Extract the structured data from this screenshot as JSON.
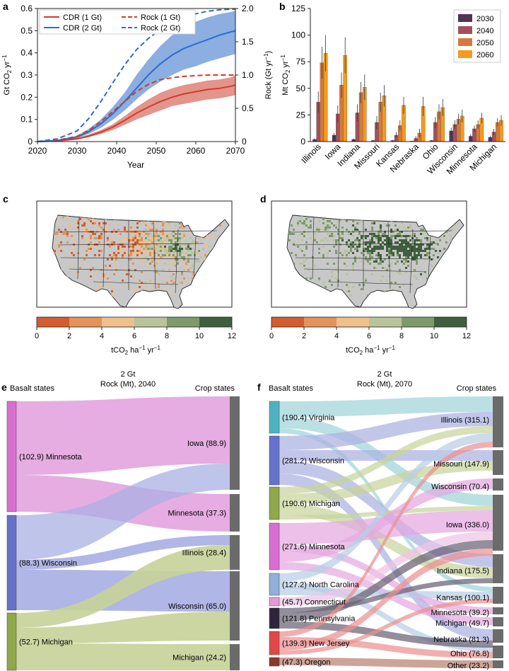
{
  "panel_labels": [
    "a",
    "b",
    "c",
    "d",
    "e",
    "f"
  ],
  "chart_data": [
    {
      "panel": "a",
      "type": "line",
      "xlabel": "Year",
      "ylabel_left": "Gt CO2 yr-1",
      "ylabel_right": "Rock (Gt yr-1)",
      "xlim": [
        2020,
        2070
      ],
      "ylim_left": [
        0,
        0.6
      ],
      "ylim_right": [
        0,
        2.0
      ],
      "x_ticks": [
        "2020",
        "2030",
        "2040",
        "2050",
        "2060",
        "2070"
      ],
      "y_ticks_left": [
        "0",
        "0.1",
        "0.2",
        "0.3",
        "0.4",
        "0.5",
        "0.6"
      ],
      "y_ticks_right": [
        "0",
        "0.5",
        "1.0",
        "1.5",
        "2.0"
      ],
      "x": [
        2020,
        2025,
        2030,
        2033,
        2036,
        2039,
        2042,
        2045,
        2048,
        2051,
        2054,
        2057,
        2060,
        2063,
        2066,
        2069,
        2070
      ],
      "series": [
        {
          "name": "CDR (1 Gt)",
          "axis": "left",
          "color": "#cc3d2b",
          "dash": false,
          "values": [
            0,
            0.003,
            0.012,
            0.025,
            0.042,
            0.065,
            0.095,
            0.128,
            0.155,
            0.18,
            0.2,
            0.215,
            0.225,
            0.235,
            0.24,
            0.25,
            0.255
          ],
          "lower": [
            0,
            0.002,
            0.009,
            0.02,
            0.034,
            0.052,
            0.075,
            0.1,
            0.12,
            0.14,
            0.16,
            0.17,
            0.18,
            0.19,
            0.195,
            0.205,
            0.21
          ],
          "upper": [
            0,
            0.005,
            0.016,
            0.032,
            0.052,
            0.078,
            0.115,
            0.155,
            0.19,
            0.22,
            0.24,
            0.255,
            0.265,
            0.275,
            0.28,
            0.29,
            0.3
          ]
        },
        {
          "name": "CDR (2 Gt)",
          "axis": "left",
          "color": "#2e6bc9",
          "dash": false,
          "values": [
            0,
            0.005,
            0.02,
            0.045,
            0.08,
            0.125,
            0.18,
            0.24,
            0.3,
            0.35,
            0.39,
            0.42,
            0.44,
            0.46,
            0.48,
            0.495,
            0.5
          ],
          "lower": [
            0,
            0.004,
            0.015,
            0.035,
            0.062,
            0.098,
            0.14,
            0.19,
            0.235,
            0.27,
            0.3,
            0.325,
            0.34,
            0.36,
            0.375,
            0.39,
            0.395
          ],
          "upper": [
            0,
            0.007,
            0.026,
            0.058,
            0.1,
            0.155,
            0.22,
            0.3,
            0.37,
            0.43,
            0.48,
            0.52,
            0.54,
            0.56,
            0.575,
            0.585,
            0.59
          ]
        },
        {
          "name": "Rock (1 Gt)",
          "axis": "right",
          "color": "#cc3d2b",
          "dash": true,
          "values": [
            0,
            0.02,
            0.08,
            0.17,
            0.3,
            0.45,
            0.6,
            0.75,
            0.86,
            0.93,
            0.96,
            0.98,
            0.99,
            1.0,
            1.0,
            1.0,
            1.0
          ]
        },
        {
          "name": "Rock (2 Gt)",
          "axis": "right",
          "color": "#2e6bc9",
          "dash": true,
          "values": [
            0,
            0.04,
            0.16,
            0.35,
            0.6,
            0.88,
            1.15,
            1.38,
            1.55,
            1.68,
            1.78,
            1.86,
            1.92,
            1.96,
            1.98,
            1.99,
            1.99
          ]
        }
      ]
    },
    {
      "panel": "b",
      "type": "bar",
      "ylabel": "Mt CO2 yr-1",
      "ylim": [
        0,
        125
      ],
      "y_ticks": [
        "0",
        "25",
        "50",
        "75",
        "100",
        "125"
      ],
      "categories": [
        "Illinois",
        "Iowa",
        "Indiana",
        "Missouri",
        "Kansas",
        "Nebraska",
        "Ohio",
        "Wisconsin",
        "Minnesota",
        "Michigan"
      ],
      "series": [
        {
          "name": "2030",
          "color": "#4e3555",
          "values": [
            2,
            6,
            2,
            1,
            1,
            0.5,
            1,
            10,
            5,
            4
          ],
          "err": [
            1,
            2,
            1,
            0.5,
            0.5,
            0.3,
            0.5,
            3,
            2,
            1.5
          ]
        },
        {
          "name": "2040",
          "color": "#a0525a",
          "values": [
            37,
            26,
            27,
            18,
            6,
            3,
            18,
            16,
            12,
            9
          ],
          "err": [
            10,
            8,
            8,
            6,
            3,
            2,
            5,
            4,
            3,
            3
          ]
        },
        {
          "name": "2050",
          "color": "#d57a3c",
          "values": [
            74,
            53,
            46,
            37,
            15,
            8,
            28,
            21,
            16,
            18
          ],
          "err": [
            15,
            12,
            10,
            9,
            5,
            4,
            7,
            5,
            4,
            4
          ]
        },
        {
          "name": "2060",
          "color": "#f59a1e",
          "values": [
            83,
            81,
            51,
            43,
            34,
            33,
            32,
            24,
            22,
            20
          ],
          "err": [
            17,
            17,
            12,
            10,
            8,
            9,
            8,
            6,
            5,
            5
          ]
        }
      ]
    },
    {
      "panel": "c",
      "type": "heatmap",
      "colorbar_label": "tCO2 ha-1 yr-1",
      "colorbar_ticks": [
        "0",
        "2",
        "4",
        "6",
        "8",
        "10",
        "12"
      ],
      "colorbar_colors": [
        "#d35d2f",
        "#e3935b",
        "#eec08c",
        "#b9c49b",
        "#7e9a6b",
        "#3f5f3e"
      ]
    },
    {
      "panel": "d",
      "type": "heatmap",
      "colorbar_label": "tCO2 ha-1 yr-1",
      "colorbar_ticks": [
        "0",
        "2",
        "4",
        "6",
        "8",
        "10",
        "12"
      ],
      "colorbar_colors": [
        "#d35d2f",
        "#e3935b",
        "#eec08c",
        "#b9c49b",
        "#7e9a6b",
        "#3f5f3e"
      ]
    }
  ],
  "sankey_e": {
    "title_line1": "2 Gt",
    "title_line2": "Rock (Mt), 2040",
    "left_header": "Basalt states",
    "right_header": "Crop states",
    "sources": [
      {
        "label": "(102.9) Minnesota",
        "color": "#d86fd0",
        "flow": "#e3a6de"
      },
      {
        "label": "(88.3) Wisconsin",
        "color": "#6672c9",
        "flow": "#a9b0e3"
      },
      {
        "label": "(52.7) Michigan",
        "color": "#8fa84a",
        "flow": "#c7d39a"
      }
    ],
    "targets": [
      {
        "label": "Iowa (88.9)"
      },
      {
        "label": "Minnesota (37.3)"
      },
      {
        "label": "Illinois (28.4)"
      },
      {
        "label": "Wisconsin (65.0)"
      },
      {
        "label": "Michigan (24.2)"
      }
    ]
  },
  "sankey_f": {
    "title_line1": "2 Gt",
    "title_line2": "Rock (Mt), 2070",
    "left_header": "Basalt states",
    "right_header": "Crop states",
    "sources": [
      {
        "label": "(190.4) Virginia",
        "color": "#4fb3bf",
        "flow": "#9fd4d9"
      },
      {
        "label": "(281.2) Wisconsin",
        "color": "#6672c9",
        "flow": "#aab1e2"
      },
      {
        "label": "(190.6) Michigan",
        "color": "#8fa84a",
        "flow": "#c8d49b"
      },
      {
        "label": "(271.6) Minnesota",
        "color": "#d86fd0",
        "flow": "#e5a7df"
      },
      {
        "label": "(127.2) North Carolina",
        "color": "#8fb0d8",
        "flow": "#b9cde6"
      },
      {
        "label": "(45.7) Connecticut",
        "color": "#e39ad6",
        "flow": "#eec3e6"
      },
      {
        "label": "(121.8) Pennsylvania",
        "color": "#2f243d",
        "flow": "#6a6275"
      },
      {
        "label": "(139.3) New Jersey",
        "color": "#e04848",
        "flow": "#ec9090"
      },
      {
        "label": "(47.3) Oregon",
        "color": "#8a3a2a",
        "flow": "#bb7f70"
      }
    ],
    "targets": [
      {
        "label": "Illinois (315.1)"
      },
      {
        "label": "Missouri (147.9)"
      },
      {
        "label": "Wisconsin (70.4)"
      },
      {
        "label": "Iowa (336.0)"
      },
      {
        "label": "Indiana (175.5)"
      },
      {
        "label": "Kansas (100.1)"
      },
      {
        "label": "Minnesota (39.2)"
      },
      {
        "label": "Michigan (49.7)"
      },
      {
        "label": "Nebraska (81.3)"
      },
      {
        "label": "Ohio (76.8)"
      },
      {
        "label": "Other (23.2)"
      }
    ]
  }
}
